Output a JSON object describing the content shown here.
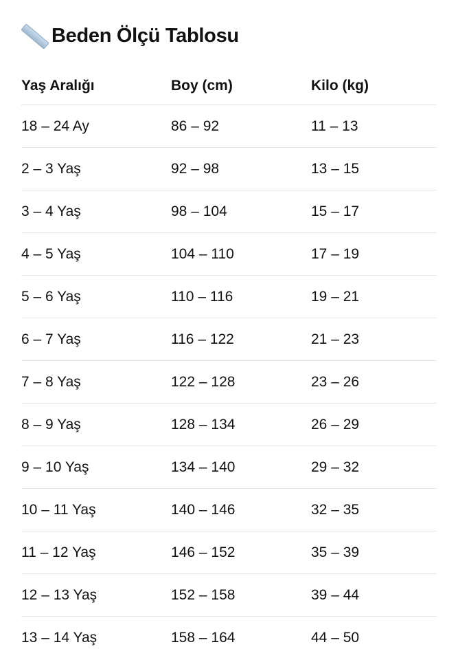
{
  "title": {
    "icon": "ruler-icon",
    "text": "Beden Ölçü Tablosu"
  },
  "table": {
    "headers": [
      "Yaş Aralığı",
      "Boy (cm)",
      "Kilo (kg)"
    ],
    "rows": [
      [
        "18 – 24 Ay",
        "86 – 92",
        "11 – 13"
      ],
      [
        "2 – 3 Yaş",
        "92 – 98",
        "13 – 15"
      ],
      [
        "3 – 4 Yaş",
        "98 – 104",
        "15 – 17"
      ],
      [
        "4 – 5 Yaş",
        "104 – 110",
        "17 – 19"
      ],
      [
        "5 – 6 Yaş",
        "110 – 116",
        "19 – 21"
      ],
      [
        "6 – 7 Yaş",
        "116 – 122",
        "21 – 23"
      ],
      [
        "7 – 8 Yaş",
        "122 – 128",
        "23 – 26"
      ],
      [
        "8 – 9 Yaş",
        "128 – 134",
        "26 – 29"
      ],
      [
        "9 – 10 Yaş",
        "134 – 140",
        "29 – 32"
      ],
      [
        "10 – 11 Yaş",
        "140 – 146",
        "32 – 35"
      ],
      [
        "11 – 12 Yaş",
        "146 – 152",
        "35 – 39"
      ],
      [
        "12 – 13 Yaş",
        "152 – 158",
        "39 – 44"
      ],
      [
        "13 – 14 Yaş",
        "158 – 164",
        "44 – 50"
      ]
    ]
  }
}
